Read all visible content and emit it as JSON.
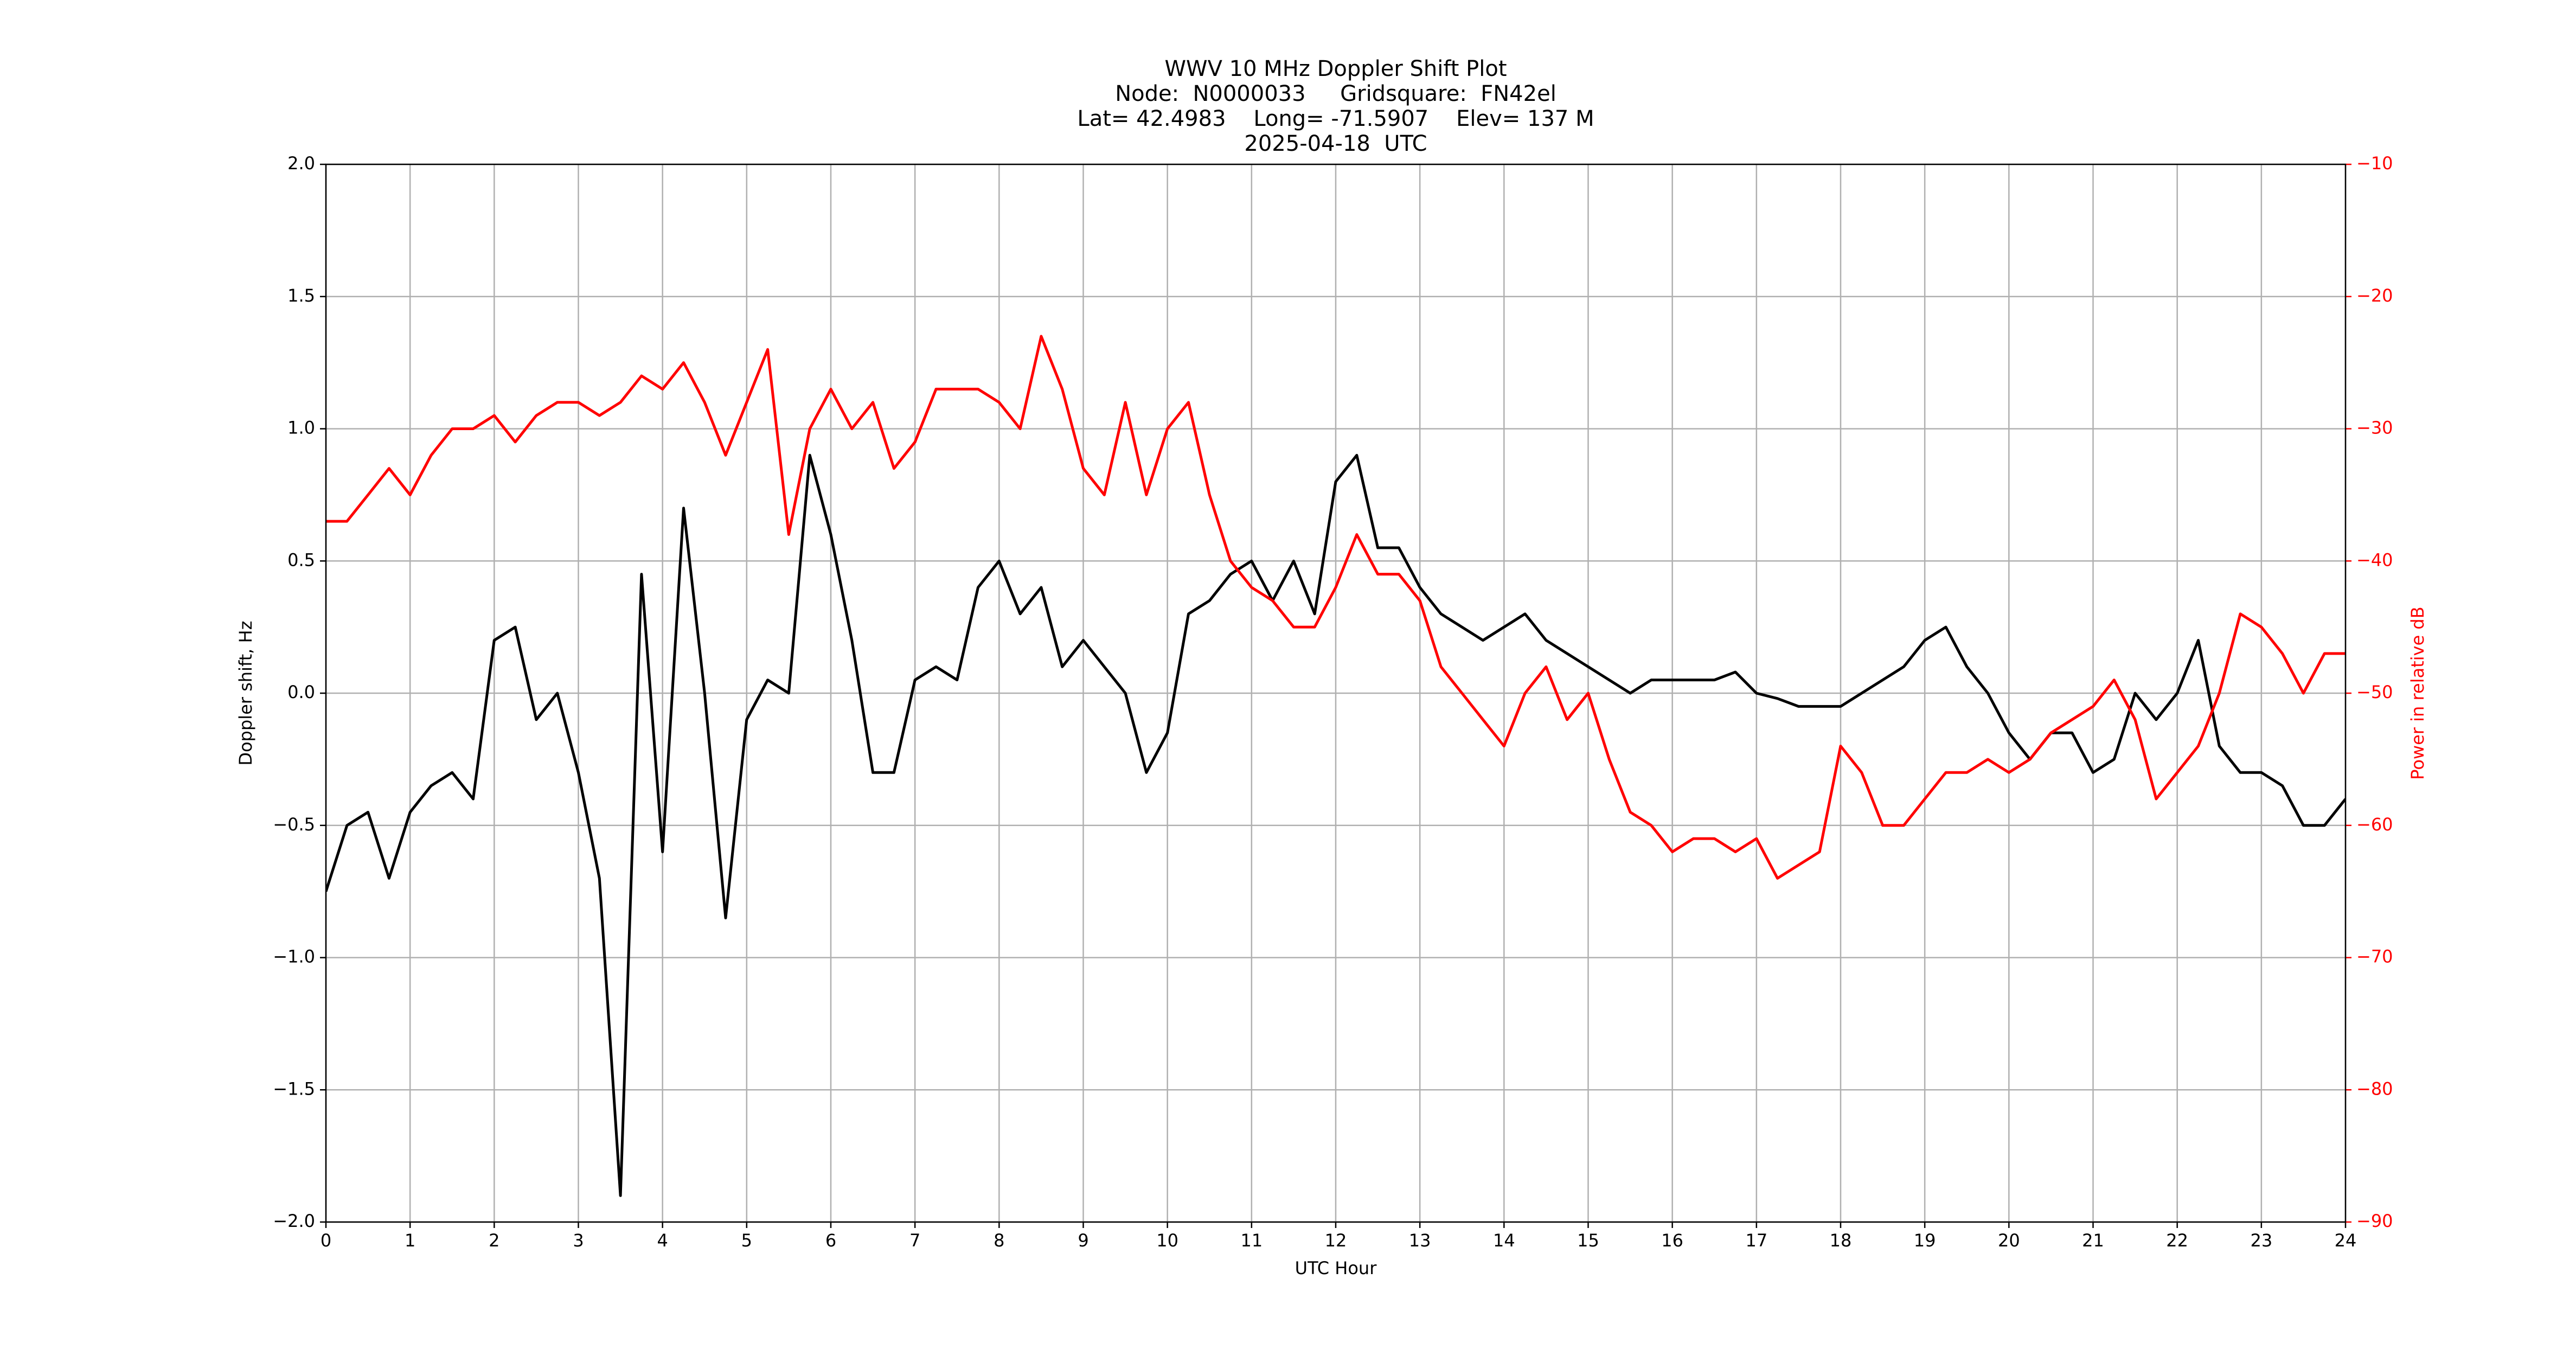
{
  "chart_data": {
    "type": "line",
    "title": [
      "WWV 10 MHz Doppler Shift Plot",
      "Node:  N0000033     Gridsquare:  FN42el",
      "Lat= 42.4983    Long= -71.5907    Elev= 137 M",
      "2025-04-18  UTC"
    ],
    "x_label": "UTC Hour",
    "y_label": "Doppler shift, Hz",
    "y2_label": "Power in relative dB",
    "grid": true,
    "x": [
      0,
      0.25,
      0.5,
      0.75,
      1,
      1.25,
      1.5,
      1.75,
      2,
      2.25,
      2.5,
      2.75,
      3,
      3.25,
      3.5,
      3.75,
      4,
      4.25,
      4.5,
      4.75,
      5,
      5.25,
      5.5,
      5.75,
      6,
      6.25,
      6.5,
      6.75,
      7,
      7.25,
      7.5,
      7.75,
      8,
      8.25,
      8.5,
      8.75,
      9,
      9.25,
      9.5,
      9.75,
      10,
      10.25,
      10.5,
      10.75,
      11,
      11.25,
      11.5,
      11.75,
      12,
      12.25,
      12.5,
      12.75,
      13,
      13.25,
      13.5,
      13.75,
      14,
      14.25,
      14.5,
      14.75,
      15,
      15.25,
      15.5,
      15.75,
      16,
      16.25,
      16.5,
      16.75,
      17,
      17.25,
      17.5,
      17.75,
      18,
      18.25,
      18.5,
      18.75,
      19,
      19.25,
      19.5,
      19.75,
      20,
      20.25,
      20.5,
      20.75,
      21,
      21.25,
      21.5,
      21.75,
      22,
      22.25,
      22.5,
      22.75,
      23,
      23.25,
      23.5,
      23.75,
      24
    ],
    "series": [
      {
        "name": "Doppler shift",
        "color": "#000000",
        "values": [
          -0.75,
          -0.5,
          -0.45,
          -0.7,
          -0.45,
          -0.35,
          -0.3,
          -0.4,
          0.2,
          0.25,
          -0.1,
          0.0,
          -0.3,
          -0.7,
          -1.9,
          0.45,
          -0.6,
          0.7,
          0.0,
          -0.85,
          -0.1,
          0.05,
          0.0,
          0.9,
          0.6,
          0.2,
          -0.3,
          -0.3,
          0.05,
          0.1,
          0.05,
          0.4,
          0.5,
          0.3,
          0.4,
          0.1,
          0.2,
          0.1,
          0.0,
          -0.3,
          -0.15,
          0.3,
          0.35,
          0.45,
          0.5,
          0.35,
          0.5,
          0.3,
          0.8,
          0.9,
          0.55,
          0.55,
          0.4,
          0.3,
          0.25,
          0.2,
          0.25,
          0.3,
          0.2,
          0.15,
          0.1,
          0.05,
          0.0,
          0.05,
          0.05,
          0.05,
          0.05,
          0.08,
          0.0,
          -0.02,
          -0.05,
          -0.05,
          -0.05,
          0.0,
          0.05,
          0.1,
          0.2,
          0.25,
          0.1,
          0.0,
          -0.15,
          -0.25,
          -0.15,
          -0.15,
          -0.3,
          -0.25,
          0.0,
          -0.1,
          0.0,
          0.2,
          -0.2,
          -0.3,
          -0.3,
          -0.35,
          -0.5,
          -0.5,
          -0.4
        ]
      },
      {
        "name": "Power",
        "color": "#ff0000",
        "axis": "y2",
        "values": [
          -37,
          -37,
          -35,
          -33,
          -35,
          -32,
          -30,
          -30,
          -29,
          -31,
          -29,
          -28,
          -28,
          -29,
          -28,
          -26,
          -27,
          -25,
          -28,
          -32,
          -28,
          -24,
          -38,
          -30,
          -27,
          -30,
          -28,
          -33,
          -31,
          -27,
          -27,
          -27,
          -28,
          -30,
          -23,
          -27,
          -33,
          -35,
          -28,
          -35,
          -30,
          -28,
          -35,
          -40,
          -42,
          -43,
          -45,
          -45,
          -42,
          -38,
          -41,
          -41,
          -43,
          -48,
          -50,
          -52,
          -54,
          -50,
          -48,
          -52,
          -50,
          -55,
          -59,
          -60,
          -62,
          -61,
          -61,
          -62,
          -61,
          -64,
          -63,
          -62,
          -54,
          -56,
          -60,
          -60,
          -58,
          -56,
          -56,
          -55,
          -56,
          -55,
          -53,
          -52,
          -51,
          -49,
          -52,
          -58,
          -56,
          -54,
          -50,
          -44,
          -45,
          -47,
          -50,
          -47,
          -47
        ]
      }
    ],
    "xlim": [
      0,
      24
    ],
    "xticks": [
      0,
      1,
      2,
      3,
      4,
      5,
      6,
      7,
      8,
      9,
      10,
      11,
      12,
      13,
      14,
      15,
      16,
      17,
      18,
      19,
      20,
      21,
      22,
      23,
      24
    ],
    "ylim": [
      -2.0,
      2.0
    ],
    "yticks": [
      {
        "value": -2.0,
        "label": "−2.0"
      },
      {
        "value": -1.5,
        "label": "−1.5"
      },
      {
        "value": -1.0,
        "label": "−1.0"
      },
      {
        "value": -0.5,
        "label": "−0.5"
      },
      {
        "value": 0.0,
        "label": "0.0"
      },
      {
        "value": 0.5,
        "label": "0.5"
      },
      {
        "value": 1.0,
        "label": "1.0"
      },
      {
        "value": 1.5,
        "label": "1.5"
      },
      {
        "value": 2.0,
        "label": "2.0"
      }
    ],
    "y2lim": [
      -90,
      -10
    ],
    "y2ticks": [
      {
        "value": -90,
        "label": "−90"
      },
      {
        "value": -80,
        "label": "−80"
      },
      {
        "value": -70,
        "label": "−70"
      },
      {
        "value": -60,
        "label": "−60"
      },
      {
        "value": -50,
        "label": "−50"
      },
      {
        "value": -40,
        "label": "−40"
      },
      {
        "value": -30,
        "label": "−30"
      },
      {
        "value": -20,
        "label": "−20"
      },
      {
        "value": -10,
        "label": "−10"
      }
    ]
  }
}
